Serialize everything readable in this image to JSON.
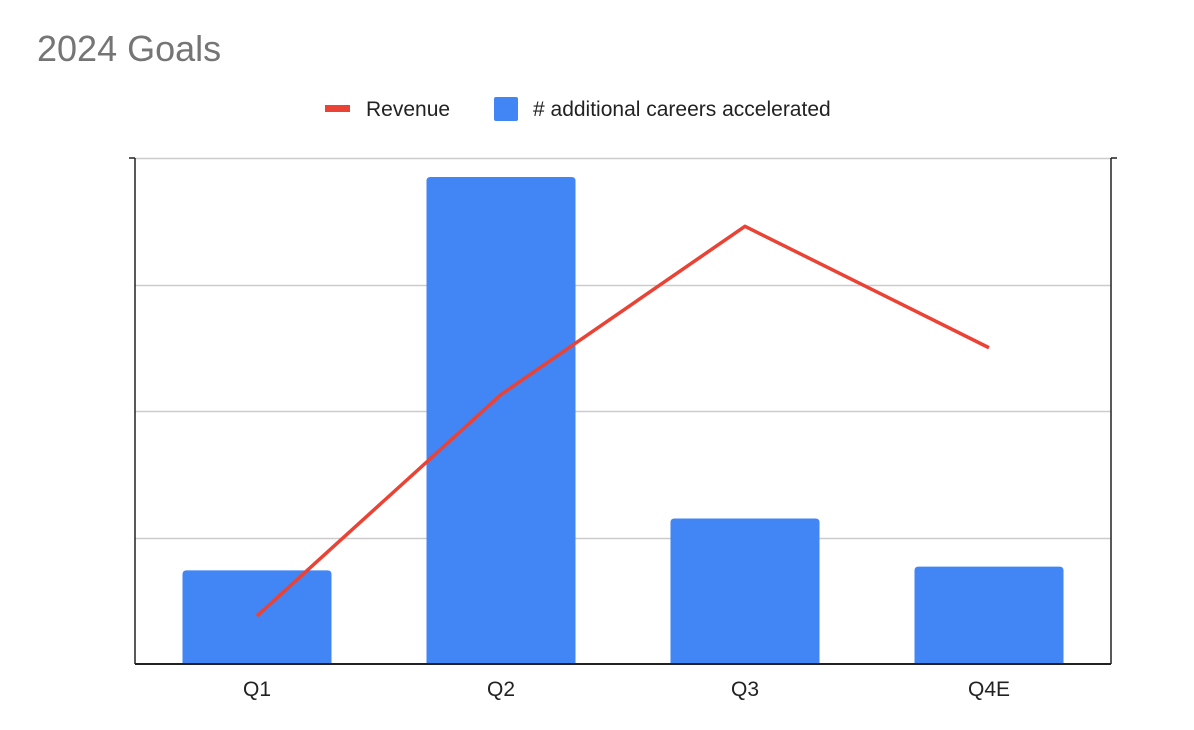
{
  "chart_data": {
    "type": "bar",
    "title": "2024 Goals",
    "categories": [
      "Q1",
      "Q2",
      "Q3",
      "Q4E"
    ],
    "series": [
      {
        "name": "# additional careers accelerated",
        "type": "bar",
        "values": [
          0.74,
          3.85,
          1.15,
          0.77
        ],
        "color": "#4285f4"
      },
      {
        "name": "Revenue",
        "type": "line",
        "values": [
          0.38,
          2.13,
          3.46,
          2.5
        ],
        "color": "#ea4335"
      }
    ],
    "xlabel": "",
    "ylabel": "",
    "ylim": [
      0,
      4
    ],
    "grid": true,
    "y_tick_labels_shown": false,
    "legend_position": "top",
    "legend_order": [
      "Revenue",
      "# additional careers accelerated"
    ]
  }
}
